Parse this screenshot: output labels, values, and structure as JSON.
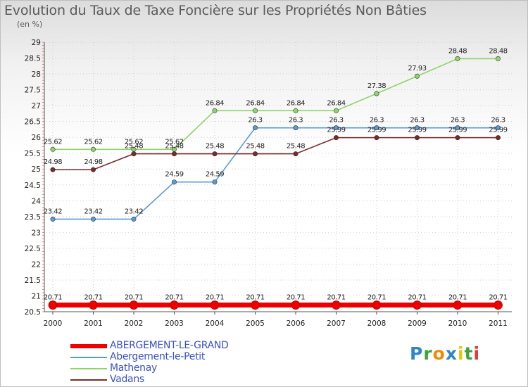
{
  "title": "Evolution du Taux de Taxe Foncière sur les Propriétés Non Bâties",
  "unit_label": "(en %)",
  "logo": {
    "letters": [
      "P",
      "r",
      "o",
      "x",
      "i",
      "t",
      "i"
    ],
    "colors": [
      "#2e86c8",
      "#3aa33a",
      "#f08a00",
      "#2e86c8",
      "#e8c800",
      "#3aa33a",
      "#e03a3a"
    ]
  },
  "chart_data": {
    "type": "line",
    "title": "Evolution du Taux de Taxe Foncière sur les Propriétés Non Bâties",
    "ylabel": "(en %)",
    "xlabel": "",
    "categories": [
      "2000",
      "2001",
      "2002",
      "2003",
      "2004",
      "2005",
      "2006",
      "2007",
      "2008",
      "2009",
      "2010",
      "2011"
    ],
    "ylim": [
      20.5,
      29
    ],
    "yticks": [
      "20.5",
      "21",
      "21.5",
      "22",
      "22.5",
      "23",
      "23.5",
      "24",
      "24.5",
      "25",
      "25.5",
      "26",
      "26.5",
      "27",
      "27.5",
      "28",
      "28.5",
      "29"
    ],
    "grid": true,
    "legend": "bottom-left",
    "series": [
      {
        "name": "ABERGEMENT-LE-GRAND",
        "color": "#ee0000",
        "values": [
          20.71,
          20.71,
          20.71,
          20.71,
          20.71,
          20.71,
          20.71,
          20.71,
          20.71,
          20.71,
          20.71,
          20.71
        ],
        "labels": [
          "20.71",
          "20.71",
          "20.71",
          "20.71",
          "20.71",
          "20.71",
          "20.71",
          "20.71",
          "20.71",
          "20.71",
          "20.71",
          "20.71"
        ]
      },
      {
        "name": "Abergement-le-Petit",
        "color": "#5b9bd5",
        "values": [
          23.42,
          23.42,
          23.42,
          24.59,
          24.59,
          26.3,
          26.3,
          26.3,
          26.3,
          26.3,
          26.3,
          26.3
        ],
        "labels": [
          "23.42",
          "23.42",
          "23.42",
          "24.59",
          "24.59",
          "26.3",
          "26.3",
          "26.3",
          "26.3",
          "26.3",
          "26.3",
          "26.3"
        ]
      },
      {
        "name": "Mathenay",
        "color": "#8fd46a",
        "values": [
          25.62,
          25.62,
          25.62,
          25.62,
          26.84,
          26.84,
          26.84,
          26.84,
          27.38,
          27.93,
          28.48,
          28.48
        ],
        "labels": [
          "25.62",
          "25.62",
          "25.62",
          "25.62",
          "26.84",
          "26.84",
          "26.84",
          "26.84",
          "27.38",
          "27.93",
          "28.48",
          "28.48"
        ]
      },
      {
        "name": "Vadans",
        "color": "#7a2a2a",
        "values": [
          24.98,
          24.98,
          25.48,
          25.48,
          25.48,
          25.48,
          25.48,
          25.99,
          25.99,
          25.99,
          25.99,
          25.99
        ],
        "labels": [
          "24.98",
          "24.98",
          "25.48",
          "25.48",
          "25.48",
          "25.48",
          "25.48",
          "25.99",
          "25.99",
          "25.99",
          "25.99",
          "25.99"
        ]
      }
    ]
  }
}
